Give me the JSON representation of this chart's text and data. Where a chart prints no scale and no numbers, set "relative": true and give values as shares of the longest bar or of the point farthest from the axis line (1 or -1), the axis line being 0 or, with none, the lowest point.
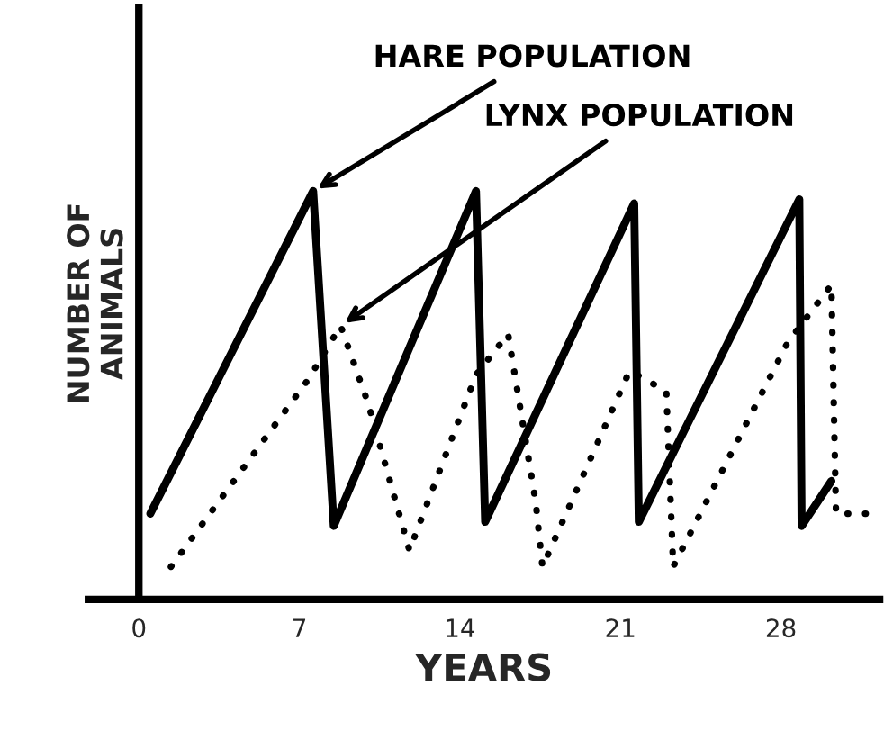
{
  "chart_data": {
    "type": "line",
    "relative": true,
    "xlabel": "YEARS",
    "ylabel": "NUMBER OF\nANIMALS",
    "xlim": [
      -2.2,
      32.3
    ],
    "xticks": [
      0,
      7,
      14,
      21,
      28
    ],
    "legend": false,
    "series": [
      {
        "name": "HARE POPULATION",
        "color": "#000000",
        "line_style": "solid",
        "x": [
          0.5,
          7.6,
          8.5,
          14.7,
          15.1,
          21.6,
          21.8,
          28.8,
          28.9,
          30.2
        ],
        "values": [
          0.21,
          1.0,
          0.18,
          1.0,
          0.19,
          0.97,
          0.19,
          0.98,
          0.18,
          0.29
        ]
      },
      {
        "name": "LYNX POPULATION",
        "color": "#000000",
        "line_style": "dotted",
        "x": [
          1.4,
          7.4,
          8.8,
          10.0,
          11.8,
          14.7,
          16.1,
          17.3,
          17.6,
          21.4,
          23.0,
          23.3,
          28.3,
          30.2,
          30.4,
          32.3
        ],
        "values": [
          0.08,
          0.54,
          0.67,
          0.48,
          0.12,
          0.55,
          0.65,
          0.24,
          0.08,
          0.56,
          0.51,
          0.08,
          0.63,
          0.77,
          0.21,
          0.21
        ]
      }
    ]
  }
}
